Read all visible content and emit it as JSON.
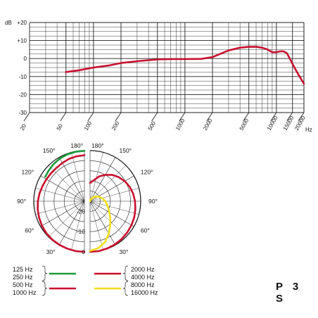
{
  "model": "P 3 S",
  "colors": {
    "red": "#c8102e",
    "green": "#1a9a3a",
    "yellow": "#f2df1a",
    "grid": "#222222"
  },
  "chart_data": [
    {
      "type": "line",
      "name": "frequency_response",
      "xscale": "log",
      "xlim": [
        20,
        20000
      ],
      "ylim": [
        -30,
        20
      ],
      "y_unit_label": "dB",
      "x_unit_label": "Hz",
      "y_ticks": [
        "+20",
        "+10",
        "0",
        "-10",
        "-20",
        "-30"
      ],
      "y_tick_values": [
        20,
        10,
        0,
        -10,
        -20,
        -30
      ],
      "x_ticks": [
        "20",
        "50",
        "100",
        "200",
        "500",
        "1000",
        "2000",
        "5000",
        "10000",
        "15000",
        "20000"
      ],
      "x_tick_values": [
        20,
        50,
        100,
        200,
        500,
        1000,
        2000,
        5000,
        10000,
        15000,
        20000
      ],
      "series": [
        {
          "color": "red",
          "x": [
            50,
            70,
            100,
            150,
            200,
            300,
            500,
            700,
            1000,
            1500,
            2000,
            3000,
            4000,
            5000,
            6000,
            7000,
            8000,
            9000,
            10000,
            11000,
            12000,
            13000,
            14000,
            15000,
            17000,
            20000
          ],
          "y": [
            -7.5,
            -6.5,
            -5,
            -3.8,
            -2.5,
            -1.5,
            -0.5,
            -0.3,
            -0.3,
            -0.2,
            0.8,
            4.5,
            6,
            6.5,
            6.5,
            6,
            5,
            3.5,
            3.5,
            4,
            4,
            3,
            0,
            -3,
            -8,
            -14
          ]
        }
      ]
    },
    {
      "type": "polar",
      "name": "polar_low_mid",
      "angle_labels": [
        "180°",
        "150°",
        "120°",
        "90°",
        "60°",
        "30°"
      ],
      "angle_values": [
        180,
        150,
        120,
        90,
        60,
        30
      ],
      "series": [
        {
          "name": "125 Hz",
          "color": "green",
          "theta": [
            122,
            130,
            140,
            150,
            160,
            170,
            180
          ],
          "db": [
            -2.2,
            -1.8,
            -1.2,
            -0.7,
            -0.4,
            -0.2,
            -0.1
          ]
        },
        {
          "name": "1000 Hz",
          "color": "red",
          "theta": [
            0,
            10,
            20,
            30,
            40,
            50,
            60,
            70,
            80,
            90,
            100,
            110,
            120,
            130,
            140,
            150,
            160,
            170,
            180
          ],
          "db": [
            0,
            0,
            -0.1,
            -0.2,
            -0.3,
            -0.5,
            -0.8,
            -1.2,
            -1.6,
            -2.0,
            -2.5,
            -3.0,
            -3.3,
            -3.5,
            -3.5,
            -3.2,
            -2.8,
            -2.5,
            -2.3
          ]
        }
      ]
    },
    {
      "type": "polar",
      "name": "polar_high",
      "angle_labels": [
        "180°",
        "150°",
        "120°",
        "90°",
        "60°",
        "30°"
      ],
      "angle_values": [
        180,
        150,
        120,
        90,
        60,
        30
      ],
      "radial_labels": [
        "0",
        "-10",
        "-20"
      ],
      "radial_values": [
        0,
        -10,
        -20
      ],
      "series": [
        {
          "name": "4000 Hz",
          "color": "red",
          "theta": [
            0,
            10,
            20,
            30,
            40,
            50,
            60,
            70,
            80,
            90,
            100,
            110,
            120,
            130,
            140,
            150,
            160,
            170,
            180
          ],
          "db": [
            0,
            0,
            -0.2,
            -0.4,
            -0.7,
            -1.0,
            -1.4,
            -1.8,
            -2.3,
            -2.8,
            -3.4,
            -4.2,
            -5.2,
            -6.5,
            -8,
            -10,
            -12,
            -14.5,
            -16
          ]
        },
        {
          "name": "16000 Hz",
          "color": "yellow",
          "theta": [
            0,
            10,
            20,
            30,
            40,
            50,
            60,
            70,
            80,
            90,
            100,
            110,
            120,
            130,
            140,
            150,
            160,
            170,
            180
          ],
          "db": [
            -0.5,
            -1.5,
            -3.5,
            -6.5,
            -9.5,
            -12,
            -14,
            -15.5,
            -16.5,
            -17.5,
            -18.5,
            -19.5,
            -20.5,
            -21.5,
            -22.5,
            -23.5,
            -24.5,
            -25.5,
            -26
          ]
        }
      ]
    }
  ],
  "legend": {
    "left": [
      "125 Hz",
      "250 Hz",
      "500 Hz",
      "1000 Hz"
    ],
    "right": [
      "2000 Hz",
      "4000 Hz",
      "8000 Hz",
      "16000 Hz"
    ]
  }
}
